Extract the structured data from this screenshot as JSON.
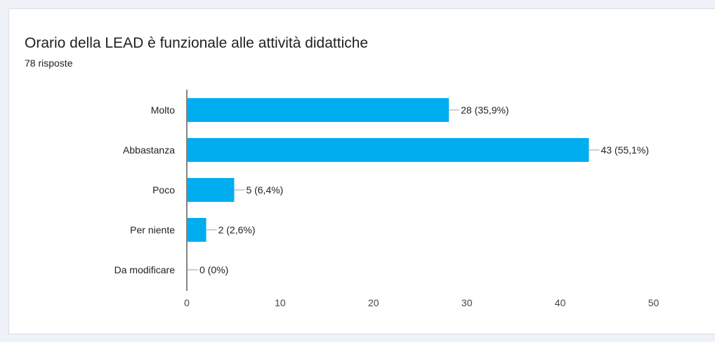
{
  "card": {
    "title": "Orario della LEAD è funzionale alle attività didattiche",
    "subtitle": "78 risposte"
  },
  "chart_data": {
    "type": "bar",
    "orientation": "horizontal",
    "title": "",
    "xlabel": "",
    "ylabel": "",
    "categories": [
      "Molto",
      "Abbastanza",
      "Poco",
      "Per niente",
      "Da modificare"
    ],
    "values": [
      28,
      43,
      5,
      2,
      0
    ],
    "data_labels": [
      "28 (35,9%)",
      "43 (55,1%)",
      "5 (6,4%)",
      "2 (2,6%)",
      "0 (0%)"
    ],
    "xlim": [
      0,
      50
    ],
    "x_ticks": [
      0,
      10,
      20,
      30,
      40,
      50
    ],
    "grid": false,
    "bar_color": "#00adef",
    "leader_color": "#9aa0a6"
  }
}
